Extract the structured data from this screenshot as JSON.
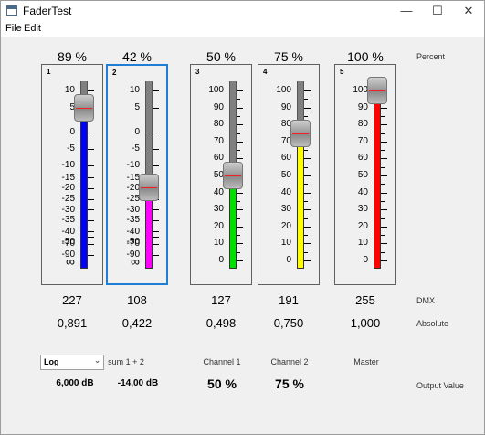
{
  "window": {
    "title": "FaderTest",
    "minimize": "—",
    "maximize": "☐",
    "close": "✕"
  },
  "menu": [
    "File",
    "Edit"
  ],
  "row_labels": {
    "percent": "Percent",
    "dmx": "DMX",
    "absolute": "Absolute",
    "output": "Output Value"
  },
  "faders": [
    {
      "id": "1",
      "percent": "89 %",
      "dmx": "227",
      "absolute": "0,891",
      "level": 0.891,
      "fill_color": "#0000ff",
      "scale": "db",
      "ticks": [
        "10",
        "5",
        "0",
        "-5",
        "-10",
        "-15",
        "-20",
        "-25",
        "-30",
        "-35",
        "-40",
        "-50",
        "-70",
        "-90",
        "∞"
      ]
    },
    {
      "id": "2",
      "percent": "42 %",
      "dmx": "108",
      "absolute": "0,422",
      "level": 0.422,
      "fill_color": "#ff00ff",
      "scale": "db",
      "ticks": [
        "10",
        "5",
        "0",
        "-5",
        "-10",
        "-15",
        "-20",
        "-25",
        "-30",
        "-35",
        "-40",
        "-50",
        "-70",
        "-90",
        "∞"
      ]
    },
    {
      "id": "3",
      "percent": "50 %",
      "dmx": "127",
      "absolute": "0,498",
      "level": 0.498,
      "fill_color": "#00e000",
      "scale": "pct",
      "ticks": [
        "100",
        "90",
        "80",
        "70",
        "60",
        "50",
        "40",
        "30",
        "20",
        "10",
        "0"
      ]
    },
    {
      "id": "4",
      "percent": "75 %",
      "dmx": "191",
      "absolute": "0,750",
      "level": 0.75,
      "fill_color": "#ffff00",
      "scale": "pct",
      "ticks": [
        "100",
        "90",
        "80",
        "70",
        "60",
        "50",
        "40",
        "30",
        "20",
        "10",
        "0"
      ]
    },
    {
      "id": "5",
      "percent": "100 %",
      "dmx": "255",
      "absolute": "1,000",
      "level": 1.0,
      "fill_color": "#ff0000",
      "scale": "pct",
      "ticks": [
        "100",
        "90",
        "80",
        "70",
        "60",
        "50",
        "40",
        "30",
        "20",
        "10",
        "0"
      ]
    }
  ],
  "controls": {
    "scale_select": "Log",
    "labels": [
      "sum 1 + 2",
      "Channel 1",
      "Channel 2",
      "Master"
    ],
    "outputs": [
      "6,000 dB",
      "-14,00 dB",
      "50 %",
      "75 %"
    ]
  }
}
